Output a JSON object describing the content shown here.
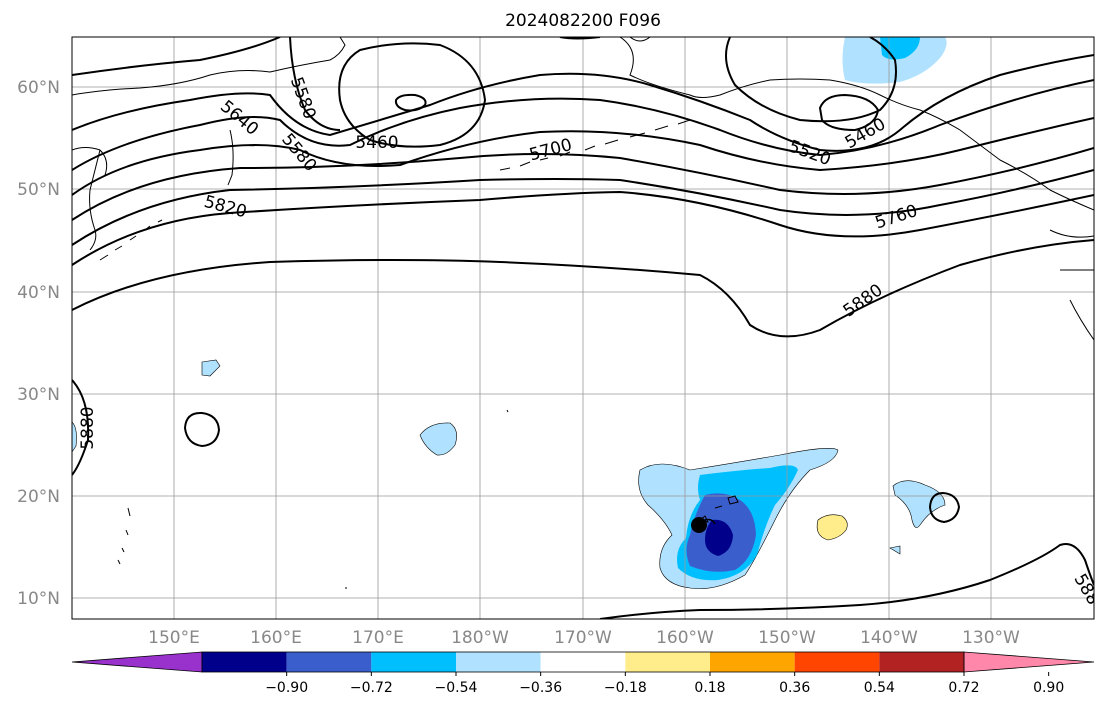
{
  "title": "2024082200 F096",
  "lat_labels": [
    "60°N",
    "50°N",
    "40°N",
    "30°N",
    "20°N",
    "10°N"
  ],
  "lon_labels": [
    "150°E",
    "160°E",
    "170°E",
    "180°W",
    "170°W",
    "160°W",
    "150°W",
    "140°W",
    "130°W"
  ],
  "contour_labels": [
    "5460",
    "5460",
    "5520",
    "5580",
    "5640",
    "5580",
    "5700",
    "5760",
    "5820",
    "5880",
    "5880",
    "588"
  ],
  "colorbar": {
    "colors": [
      "#9932cc",
      "#00008b",
      "#3a5fcd",
      "#00bfff",
      "#b0e2ff",
      "#ffffff",
      "#ffec8b",
      "#ffa500",
      "#ff4500",
      "#b22222",
      "#ff88aa"
    ],
    "tick_labels": [
      "−0.90",
      "−0.72",
      "−0.54",
      "−0.36",
      "−0.18",
      "0.18",
      "0.36",
      "0.54",
      "0.72",
      "0.90"
    ]
  },
  "colors": {
    "contour": "#000000",
    "coast": "#000000",
    "grid": "#999999"
  }
}
